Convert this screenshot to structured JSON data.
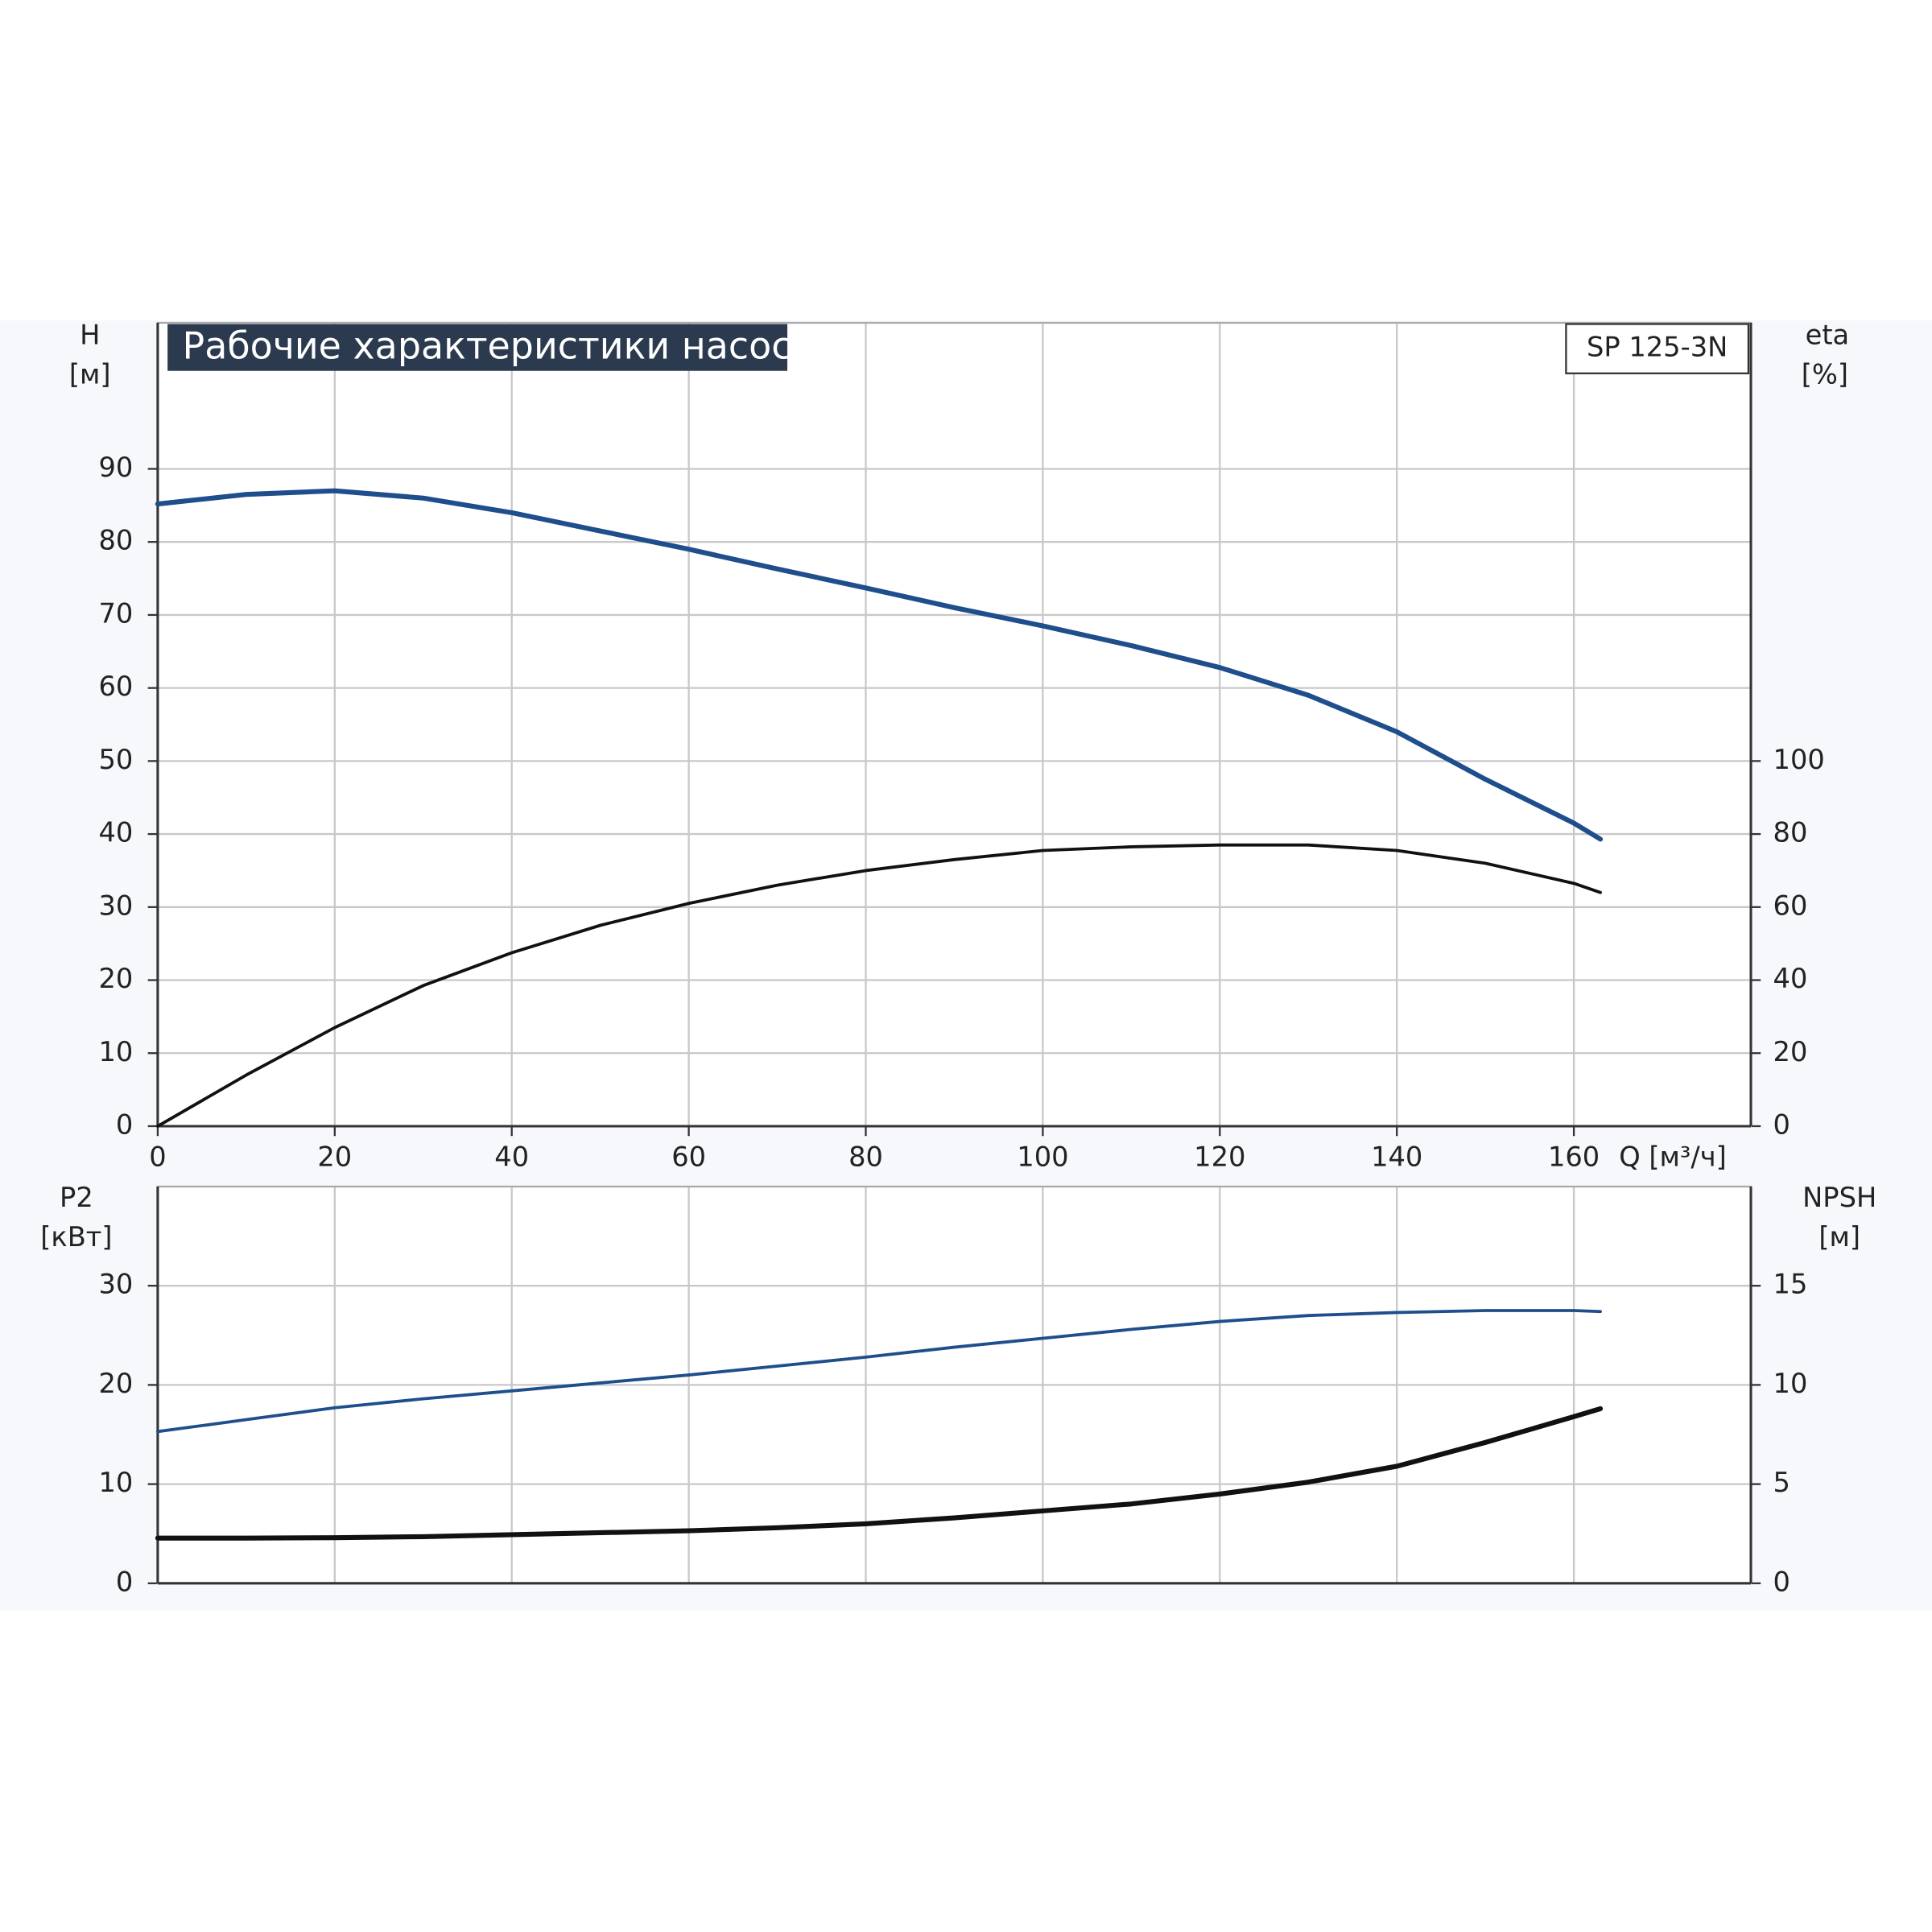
{
  "chart_data": [
    {
      "type": "line",
      "title": "Рабочие характеристики насоса",
      "model": "SP 125-3N",
      "ylabel": "H",
      "yunit": "[м]",
      "y2label": "eta",
      "y2unit": "[%]",
      "xlabel": "Q [м³/ч]",
      "x": [
        0,
        10,
        20,
        30,
        40,
        50,
        60,
        70,
        80,
        90,
        100,
        110,
        120,
        130,
        140,
        150,
        160,
        163
      ],
      "xlim": [
        0,
        180
      ],
      "xticks": [
        0,
        20,
        40,
        60,
        80,
        100,
        120,
        140,
        160
      ],
      "ylim": [
        0,
        110
      ],
      "yticks": [
        0,
        10,
        20,
        30,
        40,
        50,
        60,
        70,
        80,
        90
      ],
      "y2lim": [
        0,
        220
      ],
      "y2ticks": [
        0,
        20,
        40,
        60,
        80,
        100
      ],
      "grid": true,
      "series": [
        {
          "color": "#1f4e8c",
          "values": [
            85.2,
            86.5,
            87,
            86,
            84,
            81.5,
            79,
            76.3,
            73.7,
            71,
            68.5,
            65.8,
            62.8,
            59,
            54,
            47.5,
            41.5,
            39.3
          ]
        },
        {
          "color": "#111111",
          "axis": "y2",
          "values": [
            0,
            14,
            27,
            38.5,
            47.5,
            55,
            61,
            66,
            70,
            73,
            75.5,
            76.5,
            77,
            77,
            75.5,
            72,
            66.5,
            64
          ]
        }
      ]
    },
    {
      "type": "line",
      "ylabel": "P2",
      "yunit": "[кВт]",
      "y2label": "NPSH",
      "y2unit": "[м]",
      "x": [
        0,
        10,
        20,
        30,
        40,
        50,
        60,
        70,
        80,
        90,
        100,
        110,
        120,
        130,
        140,
        150,
        160,
        163
      ],
      "xlim": [
        0,
        180
      ],
      "xticks": [
        0,
        20,
        40,
        60,
        80,
        100,
        120,
        140,
        160
      ],
      "ylim": [
        0,
        40
      ],
      "yticks": [
        0,
        10,
        20,
        30
      ],
      "y2lim": [
        0,
        20
      ],
      "y2ticks": [
        0,
        5,
        10,
        15
      ],
      "grid": true,
      "series": [
        {
          "color": "#1f4e8c",
          "values": [
            15.3,
            16.5,
            17.7,
            18.6,
            19.4,
            20.2,
            21,
            21.9,
            22.8,
            23.8,
            24.7,
            25.6,
            26.4,
            27,
            27.3,
            27.5,
            27.5,
            27.4
          ]
        },
        {
          "color": "#111111",
          "axis": "y2",
          "values": [
            2.28,
            2.28,
            2.3,
            2.35,
            2.45,
            2.55,
            2.65,
            2.8,
            3.0,
            3.3,
            3.65,
            4.0,
            4.5,
            5.1,
            5.9,
            7.1,
            8.4,
            8.8
          ]
        }
      ]
    }
  ]
}
